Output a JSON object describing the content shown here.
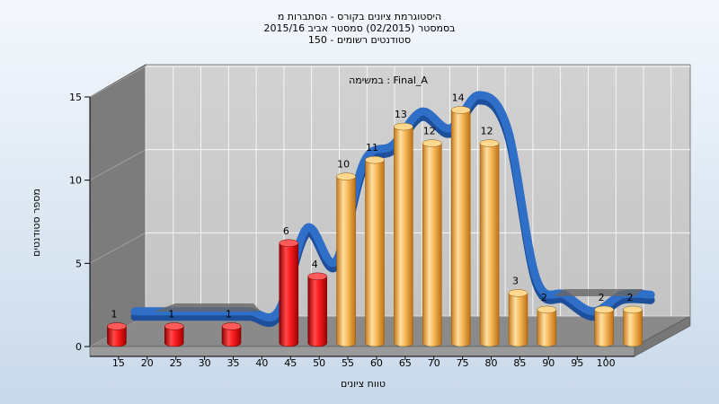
{
  "chart_data": {
    "type": "bar",
    "title_lines": [
      "היסטוגרמת ציונים בקורס - הסתברות מ",
      "בסמסטר  (02/2015)  סמסטר אביב 2015/16",
      "סטודנטים רשומים - 150"
    ],
    "annotation": "במשימה : Final_A",
    "xlabel": "טווח ציונים",
    "ylabel": "מספר סטודנטים",
    "ylim": [
      0,
      15
    ],
    "y_ticks": [
      "0",
      "5",
      "10",
      "15"
    ],
    "x_ticks": [
      "15",
      "20",
      "25",
      "30",
      "35",
      "40",
      "45",
      "50",
      "55",
      "60",
      "65",
      "70",
      "75",
      "80",
      "85",
      "90",
      "95",
      "100"
    ],
    "series": [
      {
        "values": [
          1,
          0,
          1,
          0,
          1,
          0,
          6,
          4,
          10,
          11,
          13,
          12,
          14,
          12,
          3,
          2,
          0,
          2,
          2
        ]
      }
    ],
    "bar_labels": [
      "1",
      "",
      "1",
      "",
      "1",
      "",
      "6",
      "4",
      "10",
      "11",
      "13",
      "12",
      "14",
      "12",
      "3",
      "2",
      "",
      "2",
      "2"
    ],
    "failing_color": "#e8161b",
    "passing_color": "#f0b050",
    "curve_color": "#2f6fc7",
    "grid": true
  }
}
